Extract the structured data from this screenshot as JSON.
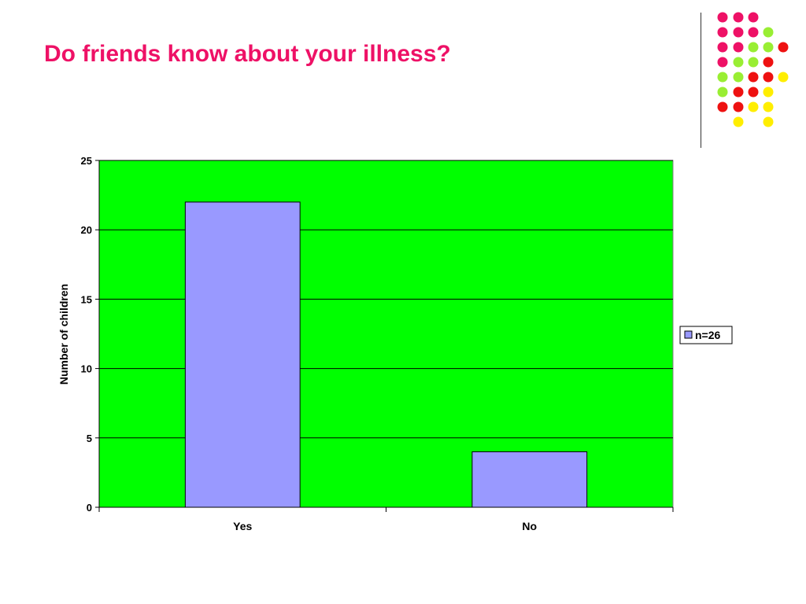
{
  "slide": {
    "title": "Do friends know about your illness?"
  },
  "decoration": {
    "dot_colors": {
      "pink": "#ee1166",
      "lime": "#99ee33",
      "red": "#ee1111",
      "yellow": "#ffee00"
    }
  },
  "chart_data": {
    "type": "bar",
    "categories": [
      "Yes",
      "No"
    ],
    "series": [
      {
        "name": "n=26",
        "values": [
          22,
          4
        ],
        "color": "#9999ff"
      }
    ],
    "ylabel": "Number of children",
    "xlabel": "",
    "ylim": [
      0,
      25
    ],
    "yticks": [
      "0",
      "5",
      "10",
      "15",
      "20",
      "25"
    ],
    "grid": true,
    "legend_position": "right",
    "plot_background": "#00ff00"
  }
}
